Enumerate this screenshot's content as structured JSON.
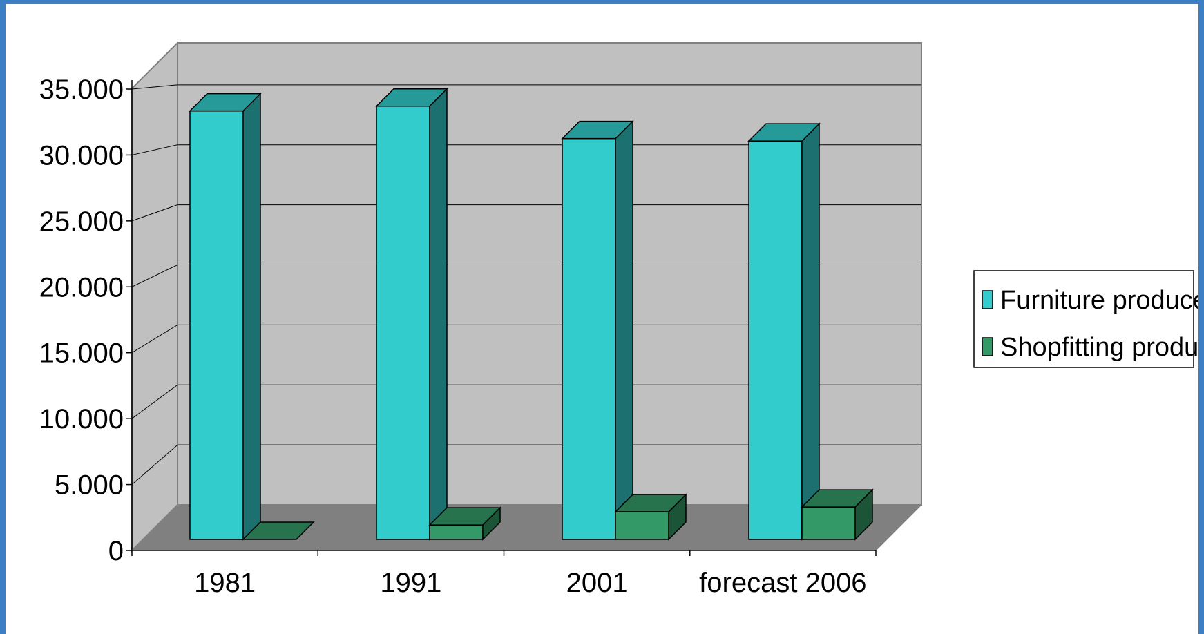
{
  "chart_data": {
    "type": "bar",
    "categories": [
      "1981",
      "1991",
      "2001",
      "forecast 2006"
    ],
    "series": [
      {
        "name": "Furniture producers",
        "values": [
          35700,
          36100,
          33400,
          33200
        ],
        "color": "#33cccc"
      },
      {
        "name": "Shopfitting producers",
        "values": [
          0,
          1200,
          2300,
          2700
        ],
        "color": "#339966"
      }
    ],
    "y_ticks": [
      "0",
      "5.000",
      "10.000",
      "15.000",
      "20.000",
      "25.000",
      "30.000",
      "35.000"
    ],
    "ylim": [
      0,
      35000
    ],
    "grid": true,
    "legend_position": "right",
    "title": "",
    "xlabel": "",
    "ylabel": ""
  }
}
